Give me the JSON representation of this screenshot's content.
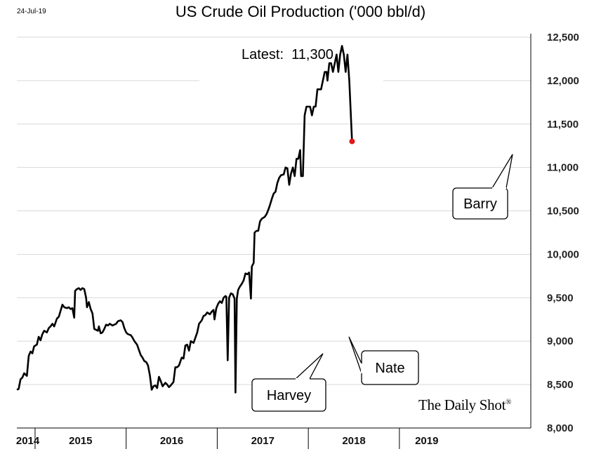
{
  "header": {
    "date": "24-Jul-19",
    "title": "US Crude Oil Production ('000 bbl/d)",
    "latest_label": "Latest:",
    "latest_value": "11,300"
  },
  "brand": "The Daily Shot",
  "brand_mark": "®",
  "colors": {
    "line": "#000000",
    "latest_point": "#e0191c",
    "grid": "#d9d9d9"
  },
  "chart_data": {
    "type": "line",
    "title": "US Crude Oil Production ('000 bbl/d)",
    "ylim": [
      8000,
      12500
    ],
    "yticks": [
      8000,
      8500,
      9000,
      9500,
      10000,
      10500,
      11000,
      11500,
      12000,
      12500
    ],
    "ytick_labels": [
      "8,000",
      "8,500",
      "9,000",
      "9,500",
      "10,000",
      "10,500",
      "11,000",
      "11,500",
      "12,000",
      "12,500"
    ],
    "y_axis_side": "right",
    "grid": true,
    "xlim": [
      2014.3,
      2019.85
    ],
    "year_labels": [
      {
        "label": "2014",
        "center": 2014.42
      },
      {
        "label": "2015",
        "center": 2015.0
      },
      {
        "label": "2016",
        "center": 2016.0
      },
      {
        "label": "2017",
        "center": 2017.0
      },
      {
        "label": "2018",
        "center": 2018.0
      },
      {
        "label": "2019",
        "center": 2018.8
      }
    ],
    "year_separators": [
      2014.5,
      2015.5,
      2016.5,
      2017.5,
      2018.5
    ],
    "series": [
      {
        "values": [
          [
            2014.3,
            8440
          ],
          [
            2014.32,
            8450
          ],
          [
            2014.34,
            8560
          ],
          [
            2014.36,
            8580
          ],
          [
            2014.38,
            8630
          ],
          [
            2014.41,
            8600
          ],
          [
            2014.43,
            8830
          ],
          [
            2014.45,
            8880
          ],
          [
            2014.47,
            8860
          ],
          [
            2014.49,
            8940
          ],
          [
            2014.52,
            8960
          ],
          [
            2014.54,
            9050
          ],
          [
            2014.56,
            9010
          ],
          [
            2014.58,
            9080
          ],
          [
            2014.6,
            9120
          ],
          [
            2014.63,
            9100
          ],
          [
            2014.65,
            9150
          ],
          [
            2014.67,
            9170
          ],
          [
            2014.69,
            9200
          ],
          [
            2014.71,
            9170
          ],
          [
            2014.74,
            9260
          ],
          [
            2014.76,
            9280
          ],
          [
            2014.78,
            9350
          ],
          [
            2014.8,
            9420
          ],
          [
            2014.82,
            9390
          ],
          [
            2014.85,
            9380
          ],
          [
            2014.87,
            9390
          ],
          [
            2014.89,
            9370
          ],
          [
            2014.91,
            9380
          ],
          [
            2014.93,
            9270
          ],
          [
            2014.94,
            9580
          ],
          [
            2014.96,
            9600
          ],
          [
            2014.98,
            9610
          ],
          [
            2015.0,
            9590
          ],
          [
            2015.02,
            9610
          ],
          [
            2015.04,
            9600
          ],
          [
            2015.06,
            9500
          ],
          [
            2015.07,
            9390
          ],
          [
            2015.09,
            9450
          ],
          [
            2015.11,
            9370
          ],
          [
            2015.13,
            9320
          ],
          [
            2015.15,
            9140
          ],
          [
            2015.17,
            9130
          ],
          [
            2015.19,
            9120
          ],
          [
            2015.2,
            9170
          ],
          [
            2015.22,
            9090
          ],
          [
            2015.24,
            9100
          ],
          [
            2015.26,
            9140
          ],
          [
            2015.28,
            9190
          ],
          [
            2015.3,
            9180
          ],
          [
            2015.32,
            9200
          ],
          [
            2015.35,
            9180
          ],
          [
            2015.37,
            9190
          ],
          [
            2015.39,
            9200
          ],
          [
            2015.41,
            9230
          ],
          [
            2015.44,
            9240
          ],
          [
            2015.46,
            9220
          ],
          [
            2015.48,
            9150
          ],
          [
            2015.5,
            9100
          ],
          [
            2015.52,
            9080
          ],
          [
            2015.55,
            9070
          ],
          [
            2015.57,
            9040
          ],
          [
            2015.59,
            9000
          ],
          [
            2015.62,
            8960
          ],
          [
            2015.64,
            8900
          ],
          [
            2015.66,
            8840
          ],
          [
            2015.68,
            8810
          ],
          [
            2015.7,
            8770
          ],
          [
            2015.72,
            8760
          ],
          [
            2015.74,
            8720
          ],
          [
            2015.76,
            8610
          ],
          [
            2015.77,
            8530
          ],
          [
            2015.78,
            8440
          ],
          [
            2015.8,
            8480
          ],
          [
            2015.82,
            8490
          ],
          [
            2015.84,
            8460
          ],
          [
            2015.86,
            8590
          ],
          [
            2015.88,
            8540
          ],
          [
            2015.9,
            8480
          ],
          [
            2015.93,
            8520
          ],
          [
            2015.95,
            8500
          ],
          [
            2015.97,
            8470
          ],
          [
            2015.99,
            8490
          ],
          [
            2016.02,
            8530
          ],
          [
            2016.04,
            8700
          ],
          [
            2016.06,
            8700
          ],
          [
            2016.08,
            8720
          ],
          [
            2016.11,
            8810
          ],
          [
            2016.13,
            8800
          ],
          [
            2016.15,
            8950
          ],
          [
            2016.17,
            8960
          ],
          [
            2016.19,
            8890
          ],
          [
            2016.21,
            9000
          ],
          [
            2016.24,
            8980
          ],
          [
            2016.26,
            9040
          ],
          [
            2016.28,
            9100
          ],
          [
            2016.3,
            9200
          ],
          [
            2016.33,
            9240
          ],
          [
            2016.35,
            9290
          ],
          [
            2016.37,
            9300
          ],
          [
            2016.39,
            9330
          ],
          [
            2016.42,
            9310
          ],
          [
            2016.44,
            9340
          ],
          [
            2016.46,
            9360
          ],
          [
            2016.47,
            9250
          ],
          [
            2016.49,
            9380
          ],
          [
            2016.51,
            9430
          ],
          [
            2016.53,
            9460
          ],
          [
            2016.55,
            9440
          ],
          [
            2016.57,
            9500
          ],
          [
            2016.59,
            9520
          ],
          [
            2016.6,
            9510
          ],
          [
            2016.615,
            8780
          ],
          [
            2016.63,
            9500
          ],
          [
            2016.65,
            9550
          ],
          [
            2016.67,
            9540
          ],
          [
            2016.69,
            9490
          ],
          [
            2016.7,
            8410
          ],
          [
            2016.715,
            9490
          ],
          [
            2016.73,
            9590
          ],
          [
            2016.75,
            9630
          ],
          [
            2016.77,
            9660
          ],
          [
            2016.79,
            9700
          ],
          [
            2016.81,
            9780
          ],
          [
            2016.83,
            9770
          ],
          [
            2016.85,
            9790
          ],
          [
            2016.87,
            9490
          ],
          [
            2016.88,
            9860
          ],
          [
            2016.9,
            9900
          ],
          [
            2016.91,
            10250
          ],
          [
            2016.93,
            10270
          ],
          [
            2016.95,
            10270
          ],
          [
            2016.97,
            10380
          ],
          [
            2016.99,
            10410
          ],
          [
            2017.02,
            10430
          ],
          [
            2017.04,
            10460
          ],
          [
            2017.06,
            10510
          ],
          [
            2017.08,
            10570
          ],
          [
            2017.1,
            10640
          ],
          [
            2017.12,
            10700
          ],
          [
            2017.14,
            10720
          ],
          [
            2017.16,
            10820
          ],
          [
            2017.18,
            10880
          ],
          [
            2017.2,
            10910
          ],
          [
            2017.23,
            10920
          ],
          [
            2017.25,
            11000
          ],
          [
            2017.27,
            10990
          ],
          [
            2017.29,
            10800
          ],
          [
            2017.31,
            10930
          ],
          [
            2017.33,
            11000
          ],
          [
            2017.35,
            10900
          ],
          [
            2017.37,
            11100
          ],
          [
            2017.39,
            11100
          ],
          [
            2017.41,
            11200
          ],
          [
            2017.42,
            10900
          ],
          [
            2017.44,
            10900
          ],
          [
            2017.46,
            11600
          ],
          [
            2017.48,
            11700
          ],
          [
            2017.5,
            11700
          ],
          [
            2017.52,
            11700
          ],
          [
            2017.54,
            11600
          ],
          [
            2017.56,
            11700
          ],
          [
            2017.58,
            11700
          ],
          [
            2017.6,
            11900
          ],
          [
            2017.62,
            11900
          ],
          [
            2017.64,
            11900
          ],
          [
            2017.66,
            12000
          ],
          [
            2017.68,
            12100
          ],
          [
            2017.7,
            12100
          ],
          [
            2017.71,
            12000
          ],
          [
            2017.73,
            12200
          ],
          [
            2017.75,
            12200
          ],
          [
            2017.77,
            12100
          ],
          [
            2017.79,
            12200
          ],
          [
            2017.81,
            12300
          ],
          [
            2017.83,
            12100
          ],
          [
            2017.85,
            12300
          ],
          [
            2017.87,
            12400
          ],
          [
            2017.89,
            12300
          ],
          [
            2017.91,
            12100
          ],
          [
            2017.93,
            12300
          ],
          [
            2017.95,
            12000
          ],
          [
            2017.98,
            11300
          ]
        ]
      }
    ],
    "latest_point": [
      2017.98,
      11300
    ],
    "annotations": [
      {
        "label": "Harvey",
        "points_to": [
          2016.615,
          8780
        ]
      },
      {
        "label": "Nate",
        "points_to": [
          2016.7,
          8410
        ]
      },
      {
        "label": "Barry",
        "points_to": [
          2017.98,
          11300
        ]
      }
    ]
  }
}
